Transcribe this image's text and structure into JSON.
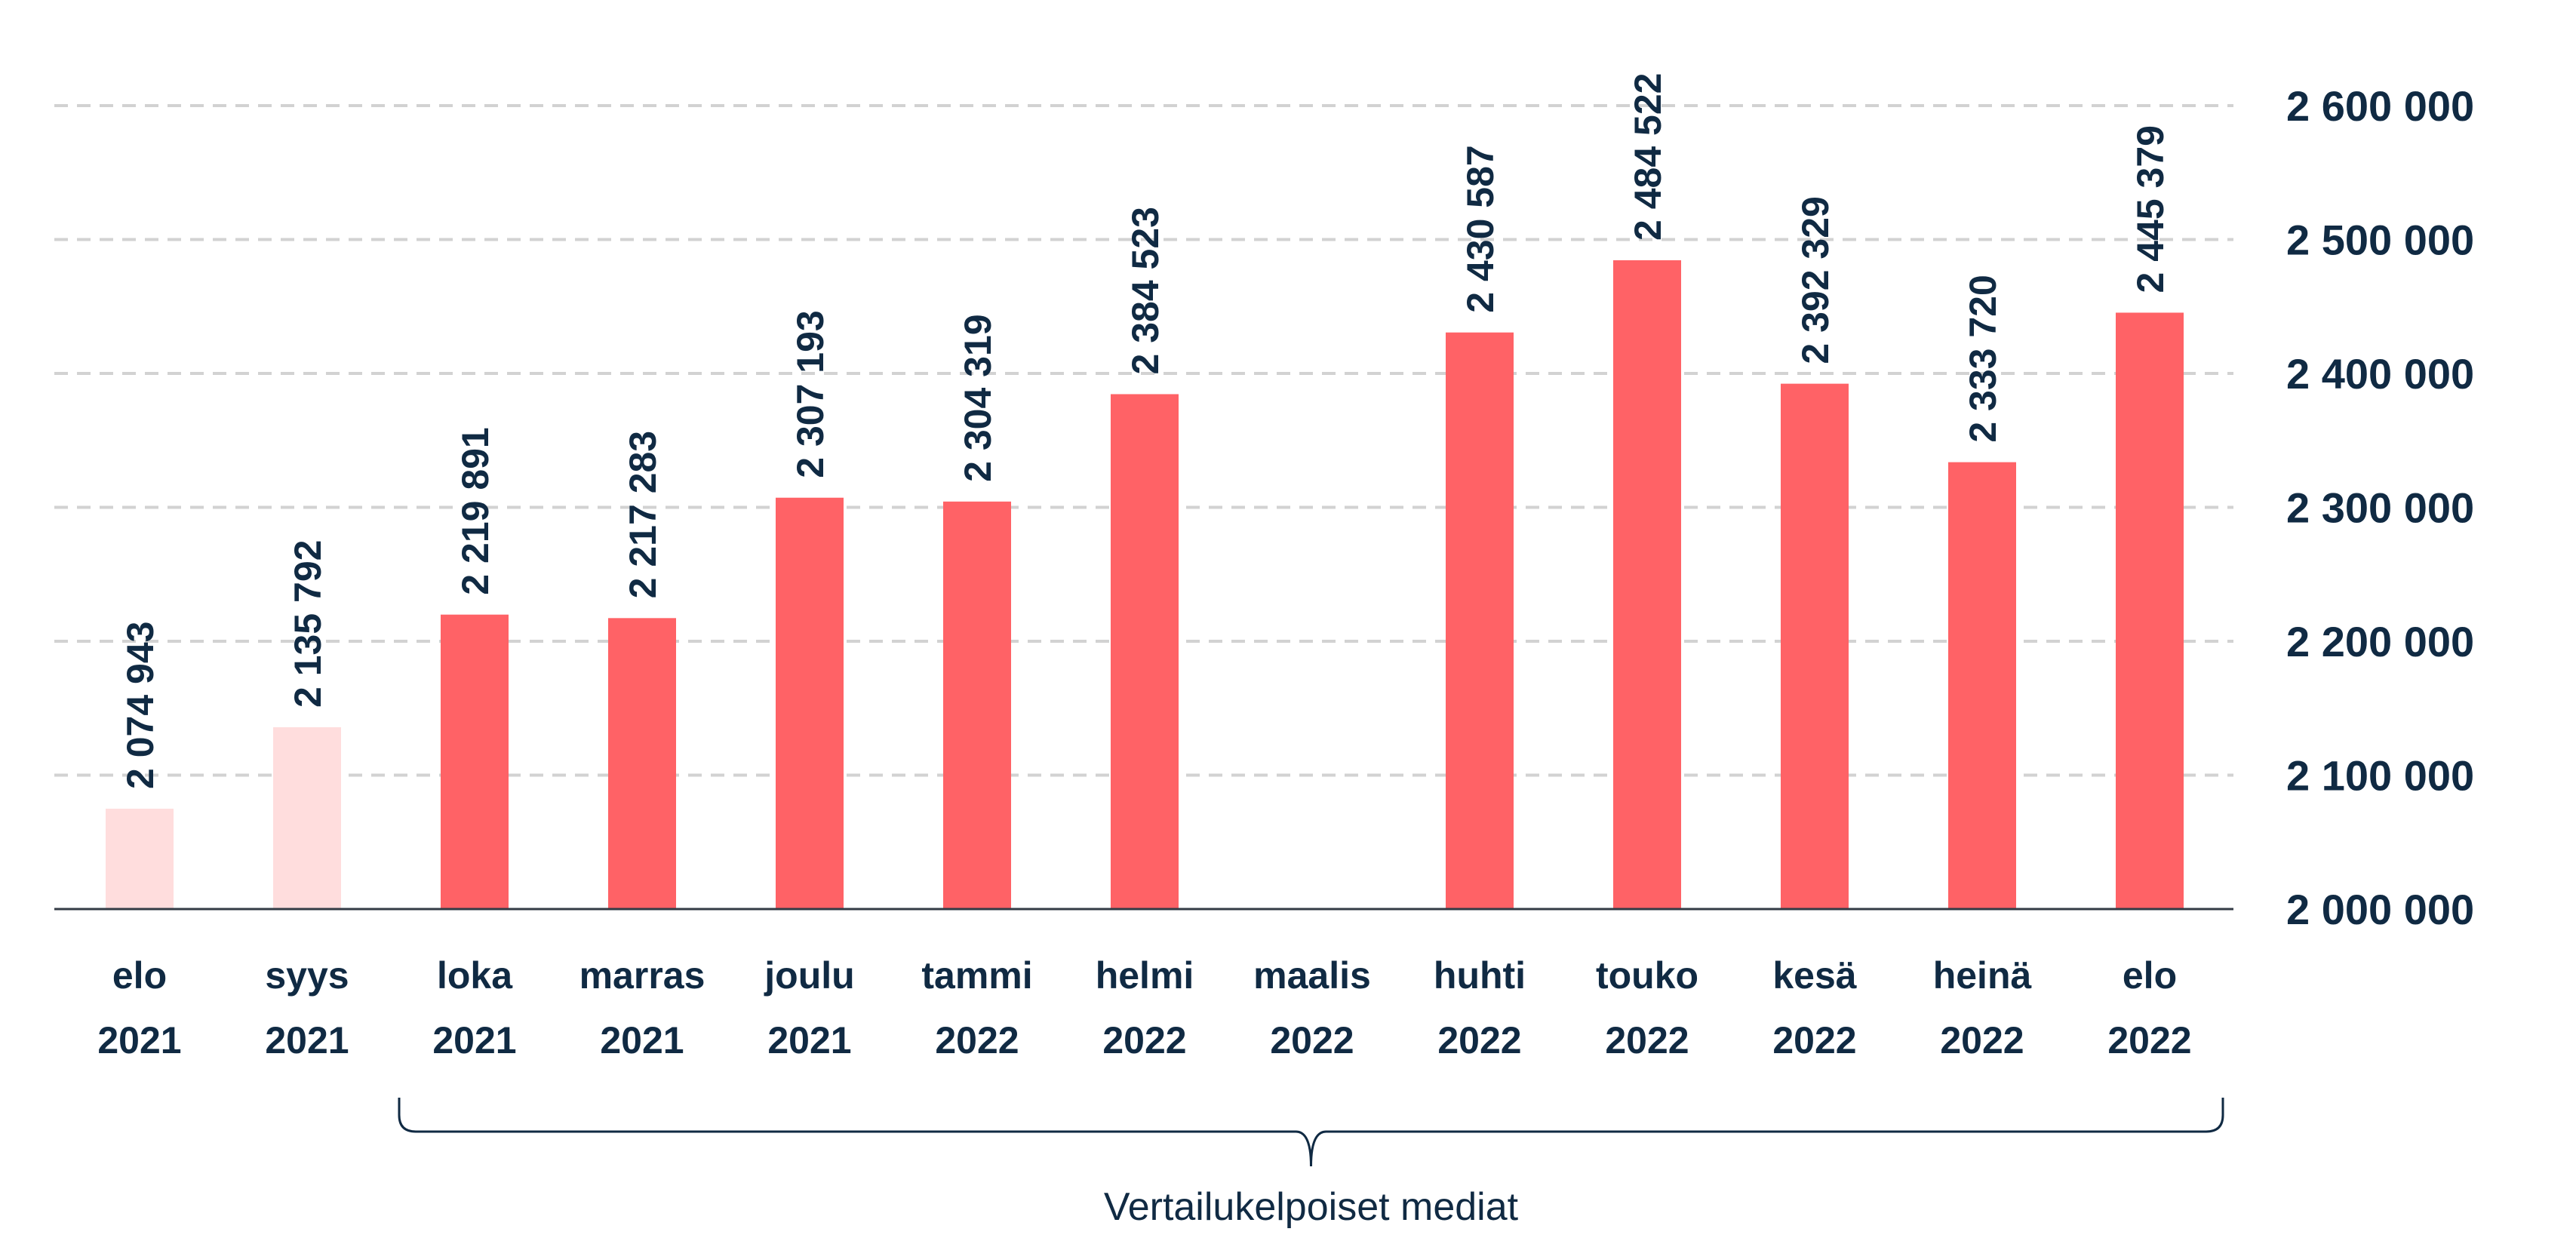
{
  "colors": {
    "bar": "#ff6266",
    "bar_light": "#ffdddd",
    "text": "#102a43",
    "grid": "#d2d2d2"
  },
  "chart_data": {
    "type": "bar",
    "categories": [
      [
        "elo",
        "2021"
      ],
      [
        "syys",
        "2021"
      ],
      [
        "loka",
        "2021"
      ],
      [
        "marras",
        "2021"
      ],
      [
        "joulu",
        "2021"
      ],
      [
        "tammi",
        "2022"
      ],
      [
        "helmi",
        "2022"
      ],
      [
        "maalis",
        "2022"
      ],
      [
        "huhti",
        "2022"
      ],
      [
        "touko",
        "2022"
      ],
      [
        "kesä",
        "2022"
      ],
      [
        "heinä",
        "2022"
      ],
      [
        "elo",
        "2022"
      ]
    ],
    "values": [
      2074943,
      2135792,
      2219891,
      2217283,
      2307193,
      2304319,
      2384523,
      null,
      2430587,
      2484522,
      2392329,
      2333720,
      2445379
    ],
    "value_labels": [
      "2 074 943",
      "2 135 792",
      "2 219 891",
      "2 217 283",
      "2 307 193",
      "2 304 319",
      "2 384 523",
      "",
      "2 430 587",
      "2 484 522",
      "2 392 329",
      "2 333 720",
      "2 445 379"
    ],
    "light_bars": [
      0,
      1
    ],
    "ylim": [
      2000000,
      2600000
    ],
    "yticks": [
      2000000,
      2100000,
      2200000,
      2300000,
      2400000,
      2500000,
      2600000
    ],
    "ytick_labels": [
      "2 000 000",
      "2 100 000",
      "2 200 000",
      "2 300 000",
      "2 400 000",
      "2 500 000",
      "2 600 000"
    ],
    "grid": true,
    "brace": {
      "from_category": 2,
      "to_category": 12,
      "label": "Vertailukelpoiset mediat"
    }
  }
}
